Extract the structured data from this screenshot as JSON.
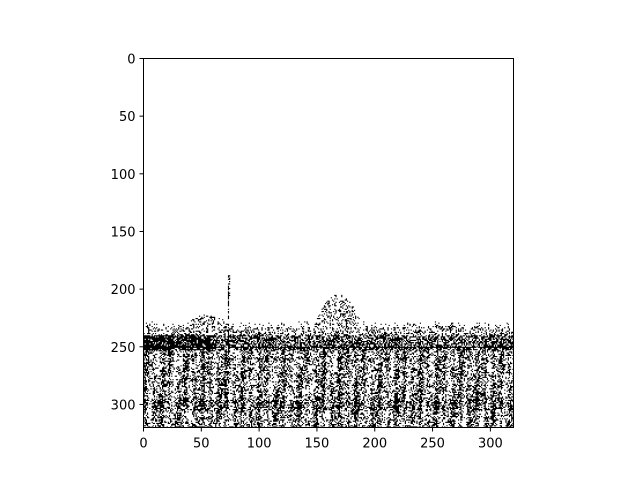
{
  "chart_data": {
    "type": "heatmap",
    "colormap": "binary",
    "image_size": [
      320,
      320
    ],
    "xlim": [
      0,
      320
    ],
    "ylim": [
      320,
      0
    ],
    "y_inverted": true,
    "grid": false,
    "xticks": [
      0,
      50,
      100,
      150,
      200,
      250,
      300
    ],
    "yticks": [
      0,
      50,
      100,
      150,
      200,
      250,
      300
    ],
    "xtick_labels": [
      "0",
      "50",
      "100",
      "150",
      "200",
      "250",
      "300"
    ],
    "ytick_labels": [
      "0",
      "50",
      "100",
      "150",
      "200",
      "250",
      "300"
    ],
    "horizon_row": 250,
    "mast": {
      "x": 73,
      "top_row": 186,
      "bottom_row": 250
    },
    "tree_canopies": [
      {
        "x_center": 168,
        "top_row": 205,
        "bottom_row": 248
      },
      {
        "x_center": 55,
        "top_row": 222,
        "bottom_row": 248
      }
    ],
    "dense_band_rows": [
      240,
      252
    ],
    "texture_rows": [
      252,
      320
    ],
    "background_color": "#ffffff",
    "ink_color": "#000000"
  }
}
